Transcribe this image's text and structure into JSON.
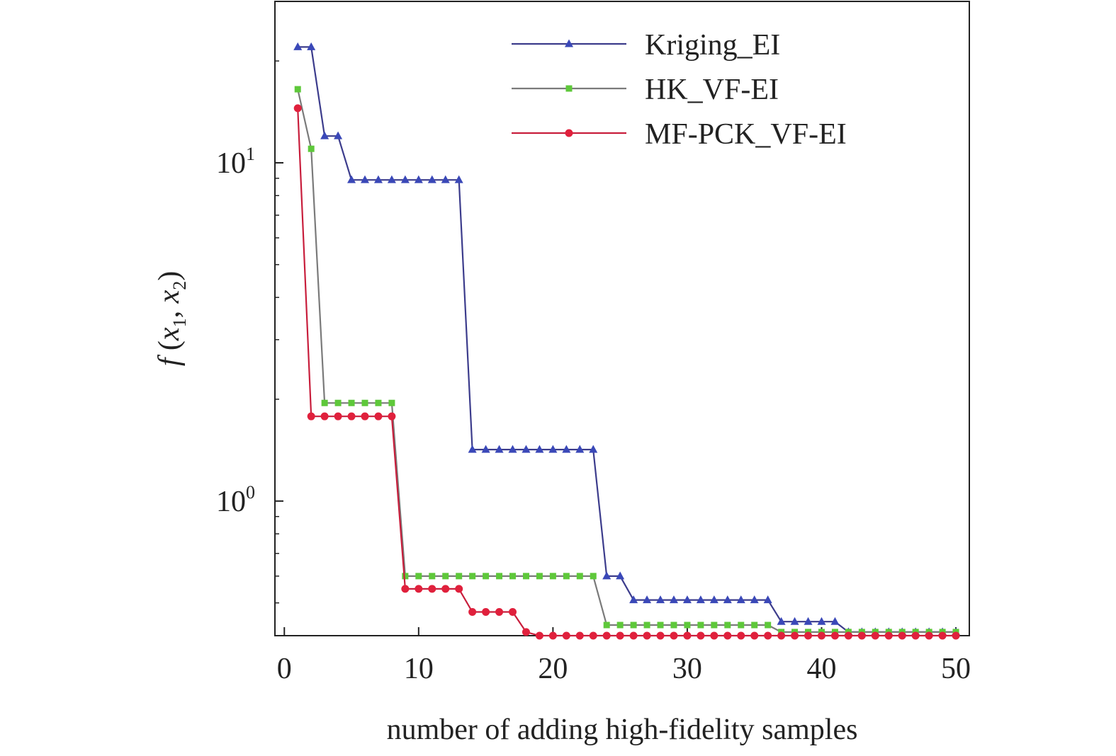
{
  "chart_data": {
    "type": "line",
    "title": "",
    "xlabel": "number of adding high-fidelity samples",
    "ylabel": "f (x1, x2)",
    "ylabel_parts": {
      "f": "f",
      "open": " (",
      "x": "x",
      "sub1": "1",
      "sep": ", ",
      "sub2": "2",
      "close": ")"
    },
    "xlim": [
      -0.7,
      51
    ],
    "ylim": [
      0.4,
      30
    ],
    "yscale": "log",
    "xticks": [
      0,
      10,
      20,
      30,
      40,
      50
    ],
    "xtick_labels": [
      "0",
      "10",
      "20",
      "30",
      "40",
      "50"
    ],
    "yticks": [
      {
        "value": 1,
        "base": "10",
        "exp": "0"
      },
      {
        "value": 10,
        "base": "10",
        "exp": "1"
      }
    ],
    "grid": false,
    "legend_position": "top-right",
    "series": [
      {
        "name": "Kriging_EI",
        "color": "#3c3c8c",
        "marker": "triangle",
        "marker_color": "#3a48b8",
        "x": [
          1,
          2,
          3,
          4,
          5,
          6,
          7,
          8,
          9,
          10,
          11,
          12,
          13,
          14,
          15,
          16,
          17,
          18,
          19,
          20,
          21,
          22,
          23,
          24,
          25,
          26,
          27,
          28,
          29,
          30,
          31,
          32,
          33,
          34,
          35,
          36,
          37,
          38,
          39,
          40,
          41,
          42,
          43,
          44,
          45,
          46,
          47,
          48,
          49,
          50
        ],
        "y": [
          22,
          22,
          12,
          12,
          8.9,
          8.9,
          8.9,
          8.9,
          8.9,
          8.9,
          8.9,
          8.9,
          8.9,
          1.42,
          1.42,
          1.42,
          1.42,
          1.42,
          1.42,
          1.42,
          1.42,
          1.42,
          1.42,
          0.6,
          0.6,
          0.51,
          0.51,
          0.51,
          0.51,
          0.51,
          0.51,
          0.51,
          0.51,
          0.51,
          0.51,
          0.51,
          0.44,
          0.44,
          0.44,
          0.44,
          0.44,
          0.41,
          0.41,
          0.41,
          0.41,
          0.41,
          0.41,
          0.41,
          0.41,
          0.41
        ]
      },
      {
        "name": "HK_VF-EI",
        "color": "#7a7a7a",
        "marker": "square",
        "marker_color": "#5ec83a",
        "x": [
          1,
          2,
          3,
          4,
          5,
          6,
          7,
          8,
          9,
          10,
          11,
          12,
          13,
          14,
          15,
          16,
          17,
          18,
          19,
          20,
          21,
          22,
          23,
          24,
          25,
          26,
          27,
          28,
          29,
          30,
          31,
          32,
          33,
          34,
          35,
          36,
          37,
          38,
          39,
          40,
          41,
          42,
          43,
          44,
          45,
          46,
          47,
          48,
          49,
          50
        ],
        "y": [
          16.5,
          11,
          1.95,
          1.95,
          1.95,
          1.95,
          1.95,
          1.95,
          0.6,
          0.6,
          0.6,
          0.6,
          0.6,
          0.6,
          0.6,
          0.6,
          0.6,
          0.6,
          0.6,
          0.6,
          0.6,
          0.6,
          0.6,
          0.43,
          0.43,
          0.43,
          0.43,
          0.43,
          0.43,
          0.43,
          0.43,
          0.43,
          0.43,
          0.43,
          0.43,
          0.43,
          0.41,
          0.41,
          0.41,
          0.41,
          0.41,
          0.41,
          0.41,
          0.41,
          0.41,
          0.41,
          0.41,
          0.41,
          0.41,
          0.41
        ]
      },
      {
        "name": "MF-PCK_VF-EI",
        "color": "#c81e3c",
        "marker": "circle",
        "marker_color": "#e0203c",
        "x": [
          1,
          2,
          3,
          4,
          5,
          6,
          7,
          8,
          9,
          10,
          11,
          12,
          13,
          14,
          15,
          16,
          17,
          18,
          19,
          20,
          21,
          22,
          23,
          24,
          25,
          26,
          27,
          28,
          29,
          30,
          31,
          32,
          33,
          34,
          35,
          36,
          37,
          38,
          39,
          40,
          41,
          42,
          43,
          44,
          45,
          46,
          47,
          48,
          49,
          50
        ],
        "y": [
          14.5,
          1.78,
          1.78,
          1.78,
          1.78,
          1.78,
          1.78,
          1.78,
          0.55,
          0.55,
          0.55,
          0.55,
          0.55,
          0.47,
          0.47,
          0.47,
          0.47,
          0.41,
          0.4,
          0.4,
          0.4,
          0.4,
          0.4,
          0.4,
          0.4,
          0.4,
          0.4,
          0.4,
          0.4,
          0.4,
          0.4,
          0.4,
          0.4,
          0.4,
          0.4,
          0.4,
          0.4,
          0.4,
          0.4,
          0.4,
          0.4,
          0.4,
          0.4,
          0.4,
          0.4,
          0.4,
          0.4,
          0.4,
          0.4,
          0.4
        ]
      }
    ]
  }
}
